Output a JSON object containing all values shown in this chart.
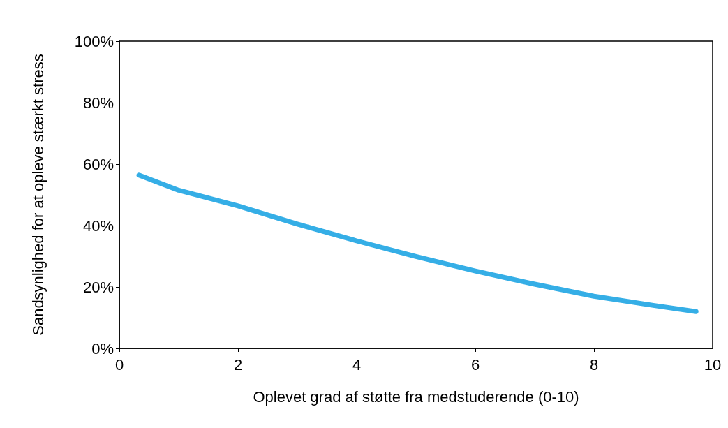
{
  "chart_data": {
    "type": "line",
    "xlabel": "Oplevet grad af støtte fra medstuderende (0-10)",
    "ylabel": "Sandsynlighed for at opleve stærkt stress",
    "series": [
      {
        "color": "#35aee6",
        "x": [
          0.33,
          1,
          2,
          3,
          4,
          5,
          6,
          7,
          8,
          9,
          9.72
        ],
        "values": [
          56.4,
          51.5,
          46.4,
          40.5,
          35.0,
          29.9,
          25.2,
          20.9,
          17.0,
          14.0,
          12.0
        ]
      }
    ],
    "xlim": [
      0,
      10
    ],
    "xticks": [
      0,
      2,
      4,
      6,
      8,
      10
    ],
    "ylim": [
      0,
      100
    ],
    "yticks": [
      {
        "value": 0,
        "label": "0%"
      },
      {
        "value": 20,
        "label": "20%"
      },
      {
        "value": 40,
        "label": "40%"
      },
      {
        "value": 60,
        "label": "60%"
      },
      {
        "value": 80,
        "label": "80%"
      },
      {
        "value": 100,
        "label": "100%"
      }
    ],
    "grid": false,
    "marker": "none",
    "line_style": "solid"
  }
}
